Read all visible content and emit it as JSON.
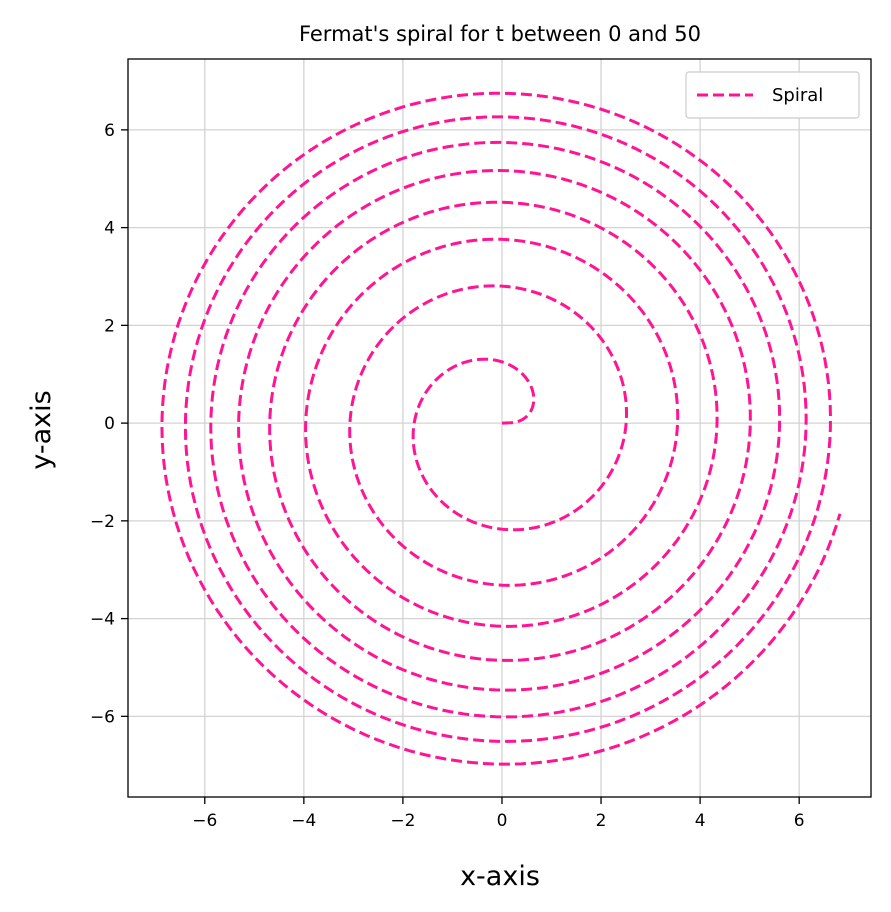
{
  "chart_data": {
    "type": "line",
    "title": "Fermat's spiral for t between 0 and 50",
    "xlabel": "x-axis",
    "ylabel": "y-axis",
    "xlim": [
      -7.55,
      7.45
    ],
    "ylim": [
      -7.65,
      7.45
    ],
    "xticks": [
      -6,
      -4,
      -2,
      0,
      2,
      4,
      6
    ],
    "yticks": [
      -6,
      -4,
      -2,
      0,
      2,
      4,
      6
    ],
    "xtick_labels": [
      "−6",
      "−4",
      "−2",
      "0",
      "2",
      "4",
      "6"
    ],
    "ytick_labels": [
      "−6",
      "−4",
      "−2",
      "0",
      "2",
      "4",
      "6"
    ],
    "grid": true,
    "legend_position": "top-right",
    "series": [
      {
        "name": "Spiral",
        "equation": "x = sqrt(t)*cos(t), y = sqrt(t)*sin(t)",
        "t_range": [
          0,
          50
        ],
        "color": "#ff1493",
        "linestyle": "dashed"
      }
    ]
  }
}
